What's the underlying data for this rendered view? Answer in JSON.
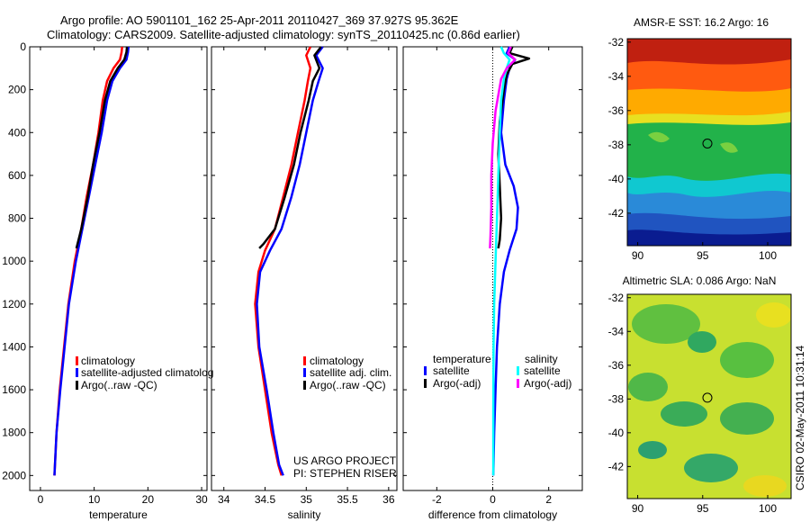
{
  "header": {
    "line1": "Argo profile: AO 5901101_162 25-Apr-2011 20110427_369 37.927S 95.362E",
    "line2": "Climatology: CARS2009. Satellite-adjusted climatology: synTS_20110425.nc (0.86d earlier)"
  },
  "side_label": "CSIRO 02-May-2011 10:31:14",
  "credit": {
    "line1": "US ARGO PROJECT",
    "line2": "PI: STEPHEN RISER"
  },
  "colors": {
    "clim": "#ff0000",
    "sat": "#0000ff",
    "argo": "#000000",
    "sal_sat": "#00ffff",
    "sal_argo": "#ff00ff"
  },
  "chart_data": [
    {
      "type": "line",
      "xlabel": "temperature",
      "xlim": [
        -2,
        31
      ],
      "xticks": [
        0,
        10,
        20,
        30
      ],
      "ylim": [
        2070,
        0
      ],
      "yticks": [
        0,
        200,
        400,
        600,
        800,
        1000,
        1200,
        1400,
        1600,
        1800,
        2000
      ],
      "legend": [
        "climatology",
        "satellite-adjusted climatolog",
        "Argo(..raw -QC)"
      ],
      "series": [
        {
          "name": "climatology",
          "color": "#ff0000",
          "x": [
            15.2,
            15.1,
            14.8,
            13.6,
            12.4,
            11.6,
            10.8,
            9.8,
            8.6,
            7.6,
            6.4,
            5.2,
            4.4,
            3.6,
            3.0,
            2.6
          ],
          "y": [
            0,
            25,
            60,
            100,
            160,
            250,
            400,
            550,
            700,
            850,
            1000,
            1200,
            1400,
            1600,
            1800,
            2000
          ]
        },
        {
          "name": "satellite-adjusted climatolog",
          "color": "#0000ff",
          "x": [
            16.4,
            16.3,
            16.0,
            14.8,
            13.4,
            12.4,
            11.4,
            10.2,
            9.0,
            7.8,
            6.6,
            5.3,
            4.5,
            3.7,
            3.0,
            2.6
          ],
          "y": [
            0,
            25,
            60,
            100,
            160,
            250,
            400,
            550,
            700,
            850,
            1000,
            1200,
            1400,
            1600,
            1800,
            2000
          ]
        },
        {
          "name": "Argo(..raw -QC)",
          "color": "#000000",
          "x": [
            16.1,
            16.0,
            15.6,
            14.4,
            13.0,
            12.0,
            11.0,
            9.8,
            8.8,
            7.6,
            6.7
          ],
          "y": [
            0,
            25,
            60,
            100,
            160,
            250,
            400,
            550,
            700,
            850,
            940
          ]
        }
      ]
    },
    {
      "type": "line",
      "xlabel": "salinity",
      "xlim": [
        33.85,
        36.1
      ],
      "xticks": [
        34,
        34.5,
        35,
        35.5,
        36
      ],
      "ylim": [
        2070,
        0
      ],
      "yticks": [
        0,
        200,
        400,
        600,
        800,
        1000,
        1200,
        1400,
        1600,
        1800,
        2000
      ],
      "legend": [
        "climatology",
        "satellite adj. clim.",
        "Argo(..raw -QC)"
      ],
      "series": [
        {
          "name": "climatology",
          "color": "#ff0000",
          "x": [
            35.05,
            35.0,
            35.05,
            35.02,
            34.98,
            34.9,
            34.82,
            34.72,
            34.62,
            34.5,
            34.42,
            34.38,
            34.42,
            34.5,
            34.58,
            34.66,
            34.7
          ],
          "y": [
            0,
            40,
            100,
            160,
            250,
            400,
            550,
            700,
            850,
            950,
            1050,
            1200,
            1400,
            1600,
            1800,
            1950,
            2000
          ]
        },
        {
          "name": "satellite adj. clim.",
          "color": "#0000ff",
          "x": [
            35.2,
            35.12,
            35.2,
            35.15,
            35.08,
            35.0,
            34.92,
            34.82,
            34.7,
            34.56,
            34.44,
            34.4,
            34.43,
            34.52,
            34.6,
            34.67,
            34.72
          ],
          "y": [
            0,
            40,
            100,
            160,
            250,
            400,
            550,
            700,
            850,
            950,
            1050,
            1200,
            1400,
            1600,
            1800,
            1950,
            2000
          ]
        },
        {
          "name": "Argo(..raw -QC)",
          "color": "#000000",
          "x": [
            35.18,
            35.1,
            35.16,
            35.08,
            35.03,
            34.93,
            34.85,
            34.74,
            34.62,
            34.48,
            34.43
          ],
          "y": [
            0,
            40,
            100,
            160,
            250,
            400,
            550,
            700,
            850,
            920,
            940
          ]
        }
      ]
    },
    {
      "type": "line",
      "xlabel": "difference from climatology",
      "xlim": [
        -3.2,
        3.2
      ],
      "xticks": [
        -2,
        0,
        2
      ],
      "ylim": [
        2070,
        0
      ],
      "yticks": [
        0,
        200,
        400,
        600,
        800,
        1000,
        1200,
        1400,
        1600,
        1800,
        2000
      ],
      "legend_titles": [
        "temperature",
        "salinity"
      ],
      "legend": [
        "satellite",
        "Argo(-adj)",
        "satellite",
        "Argo(-adj)"
      ],
      "series": [
        {
          "name": "satellite",
          "group": "temperature",
          "color": "#0000ff",
          "x": [
            0.6,
            0.5,
            0.8,
            0.6,
            0.5,
            0.4,
            0.3,
            0.45,
            0.75,
            0.9,
            0.85,
            0.6,
            0.4,
            0.25,
            0.15,
            0.1,
            0.05,
            0.02
          ],
          "y": [
            0,
            30,
            60,
            100,
            150,
            250,
            400,
            550,
            650,
            750,
            850,
            950,
            1050,
            1200,
            1400,
            1600,
            1800,
            2000
          ]
        },
        {
          "name": "Argo(-adj)",
          "group": "temperature",
          "color": "#000000",
          "x": [
            0.7,
            0.6,
            1.3,
            0.7,
            0.5,
            0.4,
            0.25,
            0.2,
            0.25,
            0.3,
            0.25,
            0.2
          ],
          "y": [
            0,
            30,
            55,
            80,
            130,
            200,
            350,
            500,
            650,
            800,
            900,
            940
          ]
        },
        {
          "name": "satellite",
          "group": "salinity",
          "color": "#00ffff",
          "x": [
            0.3,
            0.4,
            0.6,
            0.5,
            0.4,
            0.3,
            0.25,
            0.2,
            0.15,
            0.1,
            0.05,
            0.03,
            0.02,
            0.02
          ],
          "y": [
            0,
            30,
            60,
            100,
            150,
            250,
            400,
            600,
            800,
            1000,
            1200,
            1400,
            1700,
            2000
          ]
        },
        {
          "name": "Argo(-adj)",
          "group": "salinity",
          "color": "#ff00ff",
          "x": [
            0.65,
            0.55,
            0.8,
            0.5,
            0.3,
            0.1,
            0.0,
            -0.05,
            -0.05,
            -0.08,
            -0.1
          ],
          "y": [
            0,
            30,
            60,
            100,
            150,
            300,
            450,
            600,
            750,
            880,
            940
          ]
        }
      ]
    }
  ],
  "maps": [
    {
      "title": "AMSR-E SST: 16.2 Argo: 16",
      "xticks": [
        90,
        95,
        100
      ],
      "yticks": [
        -32,
        -34,
        -36,
        -38,
        -40,
        -42
      ],
      "xlim": [
        89.2,
        101.8
      ],
      "ylim": [
        -43.9,
        -31.8
      ],
      "marker": {
        "lon": 95.362,
        "lat": -37.927
      }
    },
    {
      "title": "Altimetric SLA: 0.086 Argo: NaN",
      "xticks": [
        90,
        95,
        100
      ],
      "yticks": [
        -32,
        -34,
        -36,
        -38,
        -40,
        -42
      ],
      "xlim": [
        89.2,
        101.8
      ],
      "ylim": [
        -43.9,
        -31.8
      ],
      "marker": {
        "lon": 95.362,
        "lat": -37.927
      }
    }
  ]
}
